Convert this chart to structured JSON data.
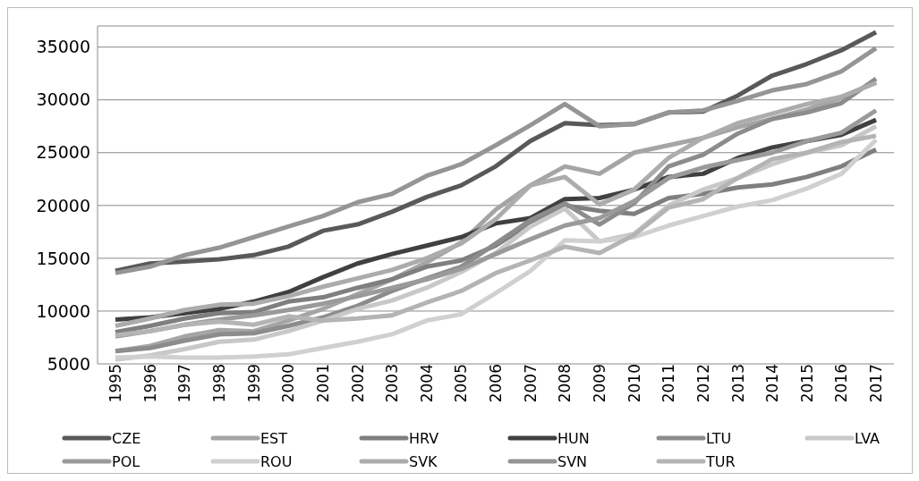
{
  "chart_data": {
    "type": "line",
    "categories": [
      "1995",
      "1996",
      "1997",
      "1998",
      "1999",
      "2000",
      "2001",
      "2002",
      "2003",
      "2004",
      "2005",
      "2006",
      "2007",
      "2008",
      "2009",
      "2010",
      "2011",
      "2012",
      "2013",
      "2014",
      "2015",
      "2016",
      "2017"
    ],
    "series": [
      {
        "name": "CZE",
        "color": "#595959",
        "values": [
          13800,
          14500,
          14700,
          14900,
          15300,
          16100,
          17600,
          18200,
          19400,
          20800,
          21900,
          23700,
          26100,
          27800,
          27600,
          27700,
          28800,
          28900,
          30400,
          32300,
          33400,
          34700,
          36400
        ]
      },
      {
        "name": "EST",
        "color": "#a5a5a5",
        "values": [
          6200,
          6700,
          7600,
          8200,
          8100,
          9100,
          10200,
          11600,
          13000,
          14600,
          16500,
          19600,
          21900,
          23700,
          23000,
          25000,
          25700,
          26400,
          27400,
          28200,
          29100,
          30200,
          31700
        ]
      },
      {
        "name": "HRV",
        "color": "#7f7f7f",
        "values": [
          8000,
          8600,
          9300,
          9800,
          9900,
          10900,
          11300,
          12200,
          13000,
          14200,
          14800,
          16200,
          18300,
          20000,
          19500,
          19200,
          20700,
          21100,
          21700,
          22000,
          22700,
          23700,
          25300
        ]
      },
      {
        "name": "HUN",
        "color": "#404040",
        "values": [
          9200,
          9400,
          9800,
          10200,
          10900,
          11800,
          13200,
          14500,
          15400,
          16200,
          17000,
          18300,
          18800,
          20600,
          20700,
          21500,
          22700,
          23000,
          24500,
          25500,
          26100,
          26700,
          28100
        ]
      },
      {
        "name": "LTU",
        "color": "#8c8c8c",
        "values": [
          6200,
          6500,
          7200,
          7800,
          7900,
          8600,
          9400,
          10500,
          11900,
          13100,
          14200,
          16400,
          18600,
          20200,
          18200,
          20200,
          23700,
          24800,
          26800,
          28200,
          28800,
          29700,
          32000
        ]
      },
      {
        "name": "LVA",
        "color": "#c8c8c8",
        "values": [
          5400,
          5800,
          6400,
          7100,
          7300,
          8100,
          9100,
          10200,
          11000,
          12200,
          13700,
          15500,
          18000,
          19700,
          16600,
          17300,
          20000,
          21500,
          22600,
          23900,
          25000,
          25700,
          27500
        ]
      },
      {
        "name": "POL",
        "color": "#9a9a9a",
        "values": [
          7600,
          8100,
          8700,
          9200,
          9600,
          10100,
          10700,
          11400,
          12200,
          13000,
          14000,
          15400,
          16800,
          18100,
          18800,
          20400,
          22600,
          23600,
          24300,
          25000,
          26100,
          26900,
          29000
        ]
      },
      {
        "name": "ROU",
        "color": "#d0d0d0",
        "values": [
          5600,
          5700,
          5600,
          5600,
          5700,
          5900,
          6500,
          7100,
          7800,
          9100,
          9700,
          11700,
          13800,
          16700,
          16600,
          17000,
          18100,
          19000,
          19900,
          20500,
          21600,
          23000,
          26200
        ]
      },
      {
        "name": "SVK",
        "color": "#acacac",
        "values": [
          8600,
          9300,
          10100,
          10600,
          10700,
          11400,
          12300,
          13100,
          13900,
          15000,
          16400,
          18700,
          21900,
          22700,
          20100,
          21500,
          24500,
          26400,
          27800,
          28700,
          29600,
          30300,
          31600
        ]
      },
      {
        "name": "SVN",
        "color": "#959595",
        "values": [
          13600,
          14200,
          15300,
          16000,
          17000,
          18000,
          19000,
          20300,
          21100,
          22800,
          23900,
          25700,
          27600,
          29600,
          27500,
          27700,
          28800,
          29000,
          29900,
          30900,
          31500,
          32700,
          34900
        ]
      },
      {
        "name": "TUR",
        "color": "#b4b4b4",
        "values": [
          7700,
          8100,
          8700,
          9000,
          8700,
          9500,
          9100,
          9300,
          9600,
          10800,
          11900,
          13600,
          14800,
          16100,
          15500,
          17200,
          19800,
          20600,
          22600,
          24400,
          25000,
          26000,
          26600
        ]
      }
    ],
    "ylim": [
      5000,
      37000
    ],
    "yticks": [
      5000,
      10000,
      15000,
      20000,
      25000,
      30000,
      35000
    ],
    "grid": "y",
    "legend": "bottom",
    "marker": "none",
    "line_style": "solid"
  }
}
